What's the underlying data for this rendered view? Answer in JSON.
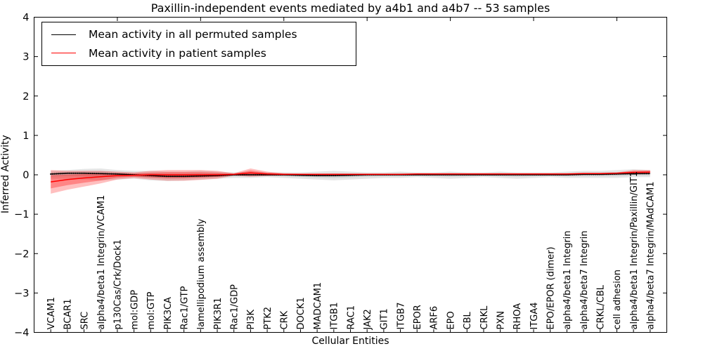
{
  "chart_data": {
    "type": "line",
    "title": "Paxillin-independent events mediated by a4b1 and a4b7 -- 53 samples",
    "xlabel": "Cellular Entities",
    "ylabel": "Inferred Activity",
    "ylim": [
      -4,
      4
    ],
    "yticks": [
      4,
      3,
      2,
      1,
      0,
      -1,
      -2,
      -3,
      -4
    ],
    "grid": false,
    "legend_position": "upper left",
    "categories": [
      "VCAM1",
      "BCAR1",
      "SRC",
      "alpha4/beta1 Integrin/VCAM1",
      "p130Cas/Crk/Dock1",
      "mol:GDP",
      "mol:GTP",
      "PIK3CA",
      "Rac1/GTP",
      "lamellipodium assembly",
      "PIK3R1",
      "Rac1/GDP",
      "PI3K",
      "PTK2",
      "CRK",
      "DOCK1",
      "MADCAM1",
      "ITGB1",
      "RAC1",
      "JAK2",
      "GIT1",
      "ITGB7",
      "EPOR",
      "ARF6",
      "EPO",
      "CBL",
      "CRKL",
      "PXN",
      "RHOA",
      "ITGA4",
      "EPO/EPOR (dimer)",
      "alpha4/beta1 Integrin",
      "alpha4/beta7 Integrin",
      "CRKL/CBL",
      "cell adhesion",
      "alpha4/beta1 Integrin/Paxillin/GIT1",
      "alpha4/beta7 Integrin/MAdCAM1"
    ],
    "series": [
      {
        "name": "Mean activity in all permuted samples",
        "color": "#000000",
        "band_color": "#999999",
        "values": [
          0.02,
          0.04,
          0.04,
          0.03,
          0.02,
          0.0,
          -0.02,
          -0.04,
          -0.04,
          -0.03,
          -0.02,
          0.0,
          0.0,
          0.0,
          0.0,
          -0.01,
          -0.02,
          -0.02,
          -0.01,
          0.0,
          0.0,
          0.0,
          0.0,
          0.0,
          0.0,
          0.0,
          0.0,
          0.0,
          0.0,
          0.0,
          0.0,
          0.0,
          0.01,
          0.01,
          0.02,
          0.03,
          0.03
        ],
        "band_upper": [
          0.1,
          0.12,
          0.15,
          0.16,
          0.12,
          0.1,
          0.1,
          0.08,
          0.08,
          0.1,
          0.08,
          0.06,
          0.08,
          0.06,
          0.06,
          0.06,
          0.08,
          0.1,
          0.08,
          0.06,
          0.06,
          0.08,
          0.06,
          0.06,
          0.08,
          0.06,
          0.06,
          0.08,
          0.06,
          0.06,
          0.06,
          0.08,
          0.1,
          0.1,
          0.12,
          0.14,
          0.12
        ],
        "band_lower": [
          -0.1,
          -0.1,
          -0.12,
          -0.14,
          -0.12,
          -0.1,
          -0.14,
          -0.16,
          -0.15,
          -0.12,
          -0.1,
          -0.08,
          -0.08,
          -0.06,
          -0.08,
          -0.1,
          -0.12,
          -0.14,
          -0.12,
          -0.1,
          -0.08,
          -0.08,
          -0.06,
          -0.08,
          -0.1,
          -0.08,
          -0.06,
          -0.08,
          -0.1,
          -0.08,
          -0.06,
          -0.08,
          -0.08,
          -0.08,
          -0.08,
          -0.06,
          -0.06
        ]
      },
      {
        "name": "Mean activity in patient samples",
        "color": "#ff0000",
        "band_color": "#ff0000",
        "values": [
          -0.18,
          -0.12,
          -0.08,
          -0.05,
          -0.02,
          -0.01,
          0.0,
          0.0,
          0.0,
          0.0,
          0.0,
          0.01,
          0.05,
          0.02,
          0.01,
          0.01,
          0.01,
          0.01,
          0.01,
          0.01,
          0.01,
          0.01,
          0.02,
          0.02,
          0.02,
          0.02,
          0.02,
          0.02,
          0.02,
          0.02,
          0.02,
          0.02,
          0.03,
          0.03,
          0.04,
          0.06,
          0.07
        ],
        "band_upper": [
          0.12,
          0.1,
          0.1,
          0.1,
          0.08,
          0.06,
          0.1,
          0.12,
          0.12,
          0.12,
          0.1,
          0.04,
          0.16,
          0.08,
          0.04,
          0.03,
          0.03,
          0.03,
          0.03,
          0.03,
          0.03,
          0.03,
          0.04,
          0.04,
          0.04,
          0.04,
          0.04,
          0.04,
          0.04,
          0.04,
          0.04,
          0.04,
          0.05,
          0.05,
          0.06,
          0.12,
          0.12
        ],
        "band_lower": [
          -0.48,
          -0.38,
          -0.3,
          -0.22,
          -0.12,
          -0.08,
          -0.12,
          -0.15,
          -0.15,
          -0.13,
          -0.1,
          -0.02,
          -0.05,
          -0.03,
          -0.02,
          -0.01,
          -0.01,
          -0.01,
          -0.01,
          -0.01,
          -0.01,
          -0.01,
          0.0,
          0.0,
          0.0,
          0.0,
          0.0,
          0.0,
          0.0,
          0.0,
          0.0,
          0.0,
          0.01,
          0.01,
          0.02,
          0.01,
          0.02
        ]
      }
    ]
  }
}
